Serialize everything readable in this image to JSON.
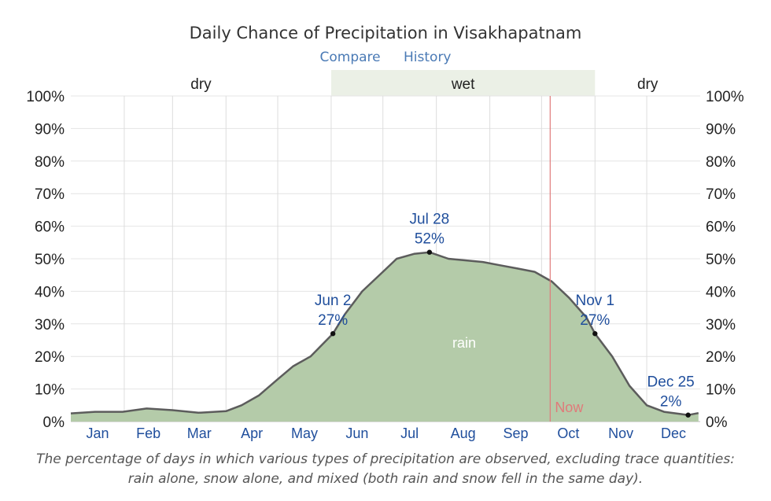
{
  "title": "Daily Chance of Precipitation in Visakhapatnam",
  "links": {
    "compare": "Compare",
    "history": "History"
  },
  "caption": "The percentage of days in which various types of precipitation are observed, excluding trace quantities: rain alone, snow alone, and mixed (both rain and snow fell in the same day).",
  "colors": {
    "rain_fill": "#b4cba9",
    "curve": "#5c5c5c",
    "wet_band": "#ebf0e6",
    "now_line": "#e07a7a",
    "label_blue": "#1f4e9c",
    "grid": "#dddddd"
  },
  "chart_data": {
    "type": "area",
    "title": "Daily Chance of Precipitation in Visakhapatnam",
    "xlabel": "",
    "ylabel": "",
    "ylim": [
      0,
      100
    ],
    "yticks": [
      "0%",
      "10%",
      "20%",
      "30%",
      "40%",
      "50%",
      "60%",
      "70%",
      "80%",
      "90%",
      "100%"
    ],
    "months": [
      "Jan",
      "Feb",
      "Mar",
      "Apr",
      "May",
      "Jun",
      "Jul",
      "Aug",
      "Sep",
      "Oct",
      "Nov",
      "Dec"
    ],
    "series": [
      {
        "name": "rain",
        "x": [
          1,
          15,
          31,
          45,
          60,
          75,
          91,
          100,
          110,
          121,
          130,
          140,
          153,
          160,
          170,
          182,
          190,
          200,
          209,
          220,
          240,
          250,
          260,
          270,
          280,
          290,
          300,
          305,
          315,
          325,
          335,
          345,
          355,
          359,
          365
        ],
        "values": [
          2.5,
          3,
          3,
          4,
          3.5,
          2.7,
          3.2,
          5,
          8,
          13,
          17,
          20,
          27,
          33,
          40,
          46,
          50,
          51.5,
          52,
          50,
          49,
          48,
          47,
          46,
          43,
          38,
          32,
          27,
          20,
          11,
          5,
          3,
          2.3,
          2,
          2.6
        ]
      }
    ],
    "seasons": [
      {
        "label": "dry",
        "start_day": 1,
        "end_day": 152
      },
      {
        "label": "wet",
        "start_day": 152,
        "end_day": 305
      },
      {
        "label": "dry",
        "start_day": 305,
        "end_day": 366
      }
    ],
    "now_day": 279,
    "now_label": "Now",
    "area_label": "rain",
    "annotations": [
      {
        "day": 153,
        "value": 27,
        "date": "Jun 2",
        "pct": "27%"
      },
      {
        "day": 209,
        "value": 52,
        "date": "Jul 28",
        "pct": "52%"
      },
      {
        "day": 305,
        "value": 27,
        "date": "Nov 1",
        "pct": "27%"
      },
      {
        "day": 359,
        "value": 2,
        "date": "Dec 25",
        "pct": "2%"
      }
    ]
  }
}
